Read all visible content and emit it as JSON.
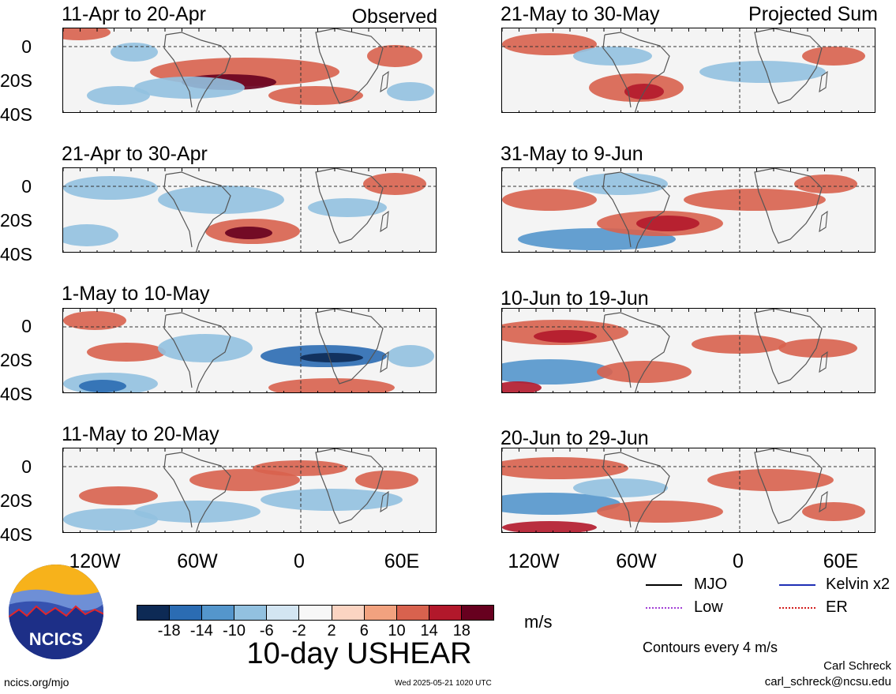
{
  "columns": [
    {
      "label": "Observed",
      "panels": [
        "11-Apr to 20-Apr",
        "21-Apr to 30-Apr",
        "1-May to 10-May",
        "11-May to 20-May"
      ]
    },
    {
      "label": "Projected Sum",
      "panels": [
        "21-May to 30-May",
        "31-May to 9-Jun",
        "10-Jun to 19-Jun",
        "20-Jun to 29-Jun"
      ]
    }
  ],
  "lat_labels": [
    "0",
    "20S",
    "40S"
  ],
  "lon_labels": [
    "120W",
    "60W",
    "0",
    "60E"
  ],
  "colorbar": {
    "labels": [
      "-18",
      "-14",
      "-10",
      "-6",
      "-2",
      "2",
      "6",
      "10",
      "14",
      "18"
    ],
    "colors": [
      "#0d2a55",
      "#2b6cb3",
      "#5496cc",
      "#92c1e0",
      "#d3e5f2",
      "#f7f7f7",
      "#fbd4c2",
      "#f2a27f",
      "#d8624e",
      "#b2182b",
      "#67001f"
    ],
    "unit": "m/s"
  },
  "main_title": "10-day USHEAR",
  "legend": [
    {
      "label": "MJO",
      "color": "#000000"
    },
    {
      "label": "Kelvin x2",
      "color": "#1f2fb5"
    },
    {
      "label": "Low",
      "color": "#a23fd6"
    },
    {
      "label": "ER",
      "color": "#d21e1e"
    }
  ],
  "contours_note": "Contours every 4 m/s",
  "author": "Carl Schreck",
  "email": "carl_schreck@ncsu.edu",
  "logo_text": "NCICS",
  "site": "ncics.org/mjo",
  "timestamp": "Wed 2025-05-21 1020 UTC",
  "icons": {
    "logo": "ncics-logo-icon"
  }
}
